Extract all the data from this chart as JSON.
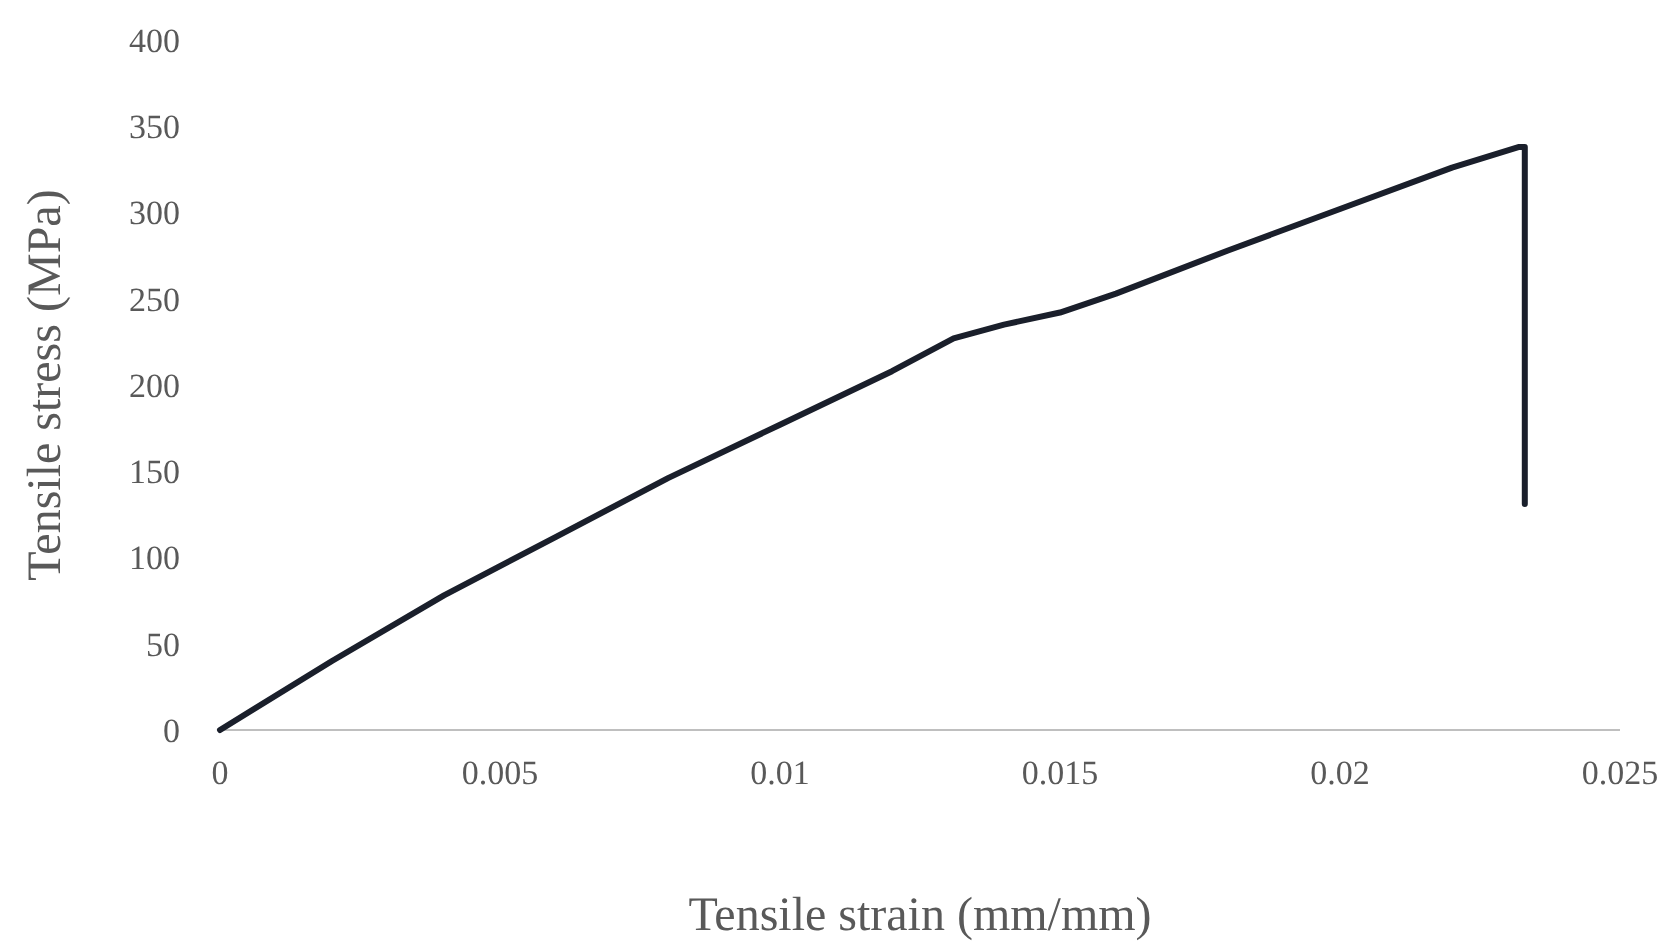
{
  "chart_data": {
    "type": "line",
    "xlabel": "Tensile strain (mm/mm)",
    "ylabel": "Tensile stress (MPa)",
    "xlim": [
      0,
      0.025
    ],
    "xticks": [
      0,
      0.005,
      0.01,
      0.015,
      0.02,
      0.025
    ],
    "ylim": [
      0,
      400
    ],
    "yticks": [
      0,
      50,
      100,
      150,
      200,
      250,
      300,
      350,
      400
    ],
    "series": [
      {
        "color": "#1a1f2b",
        "x": [
          0,
          0.002,
          0.004,
          0.006,
          0.008,
          0.01,
          0.012,
          0.0131,
          0.014,
          0.015,
          0.016,
          0.018,
          0.02,
          0.022,
          0.0232,
          0.0233,
          0.0233
        ],
        "values": [
          0,
          40,
          78,
          112,
          146,
          177,
          208,
          227,
          235,
          242,
          253,
          278,
          302,
          326,
          338,
          338,
          131
        ]
      }
    ],
    "grid": false,
    "marker": "none",
    "line_style": "solid"
  }
}
